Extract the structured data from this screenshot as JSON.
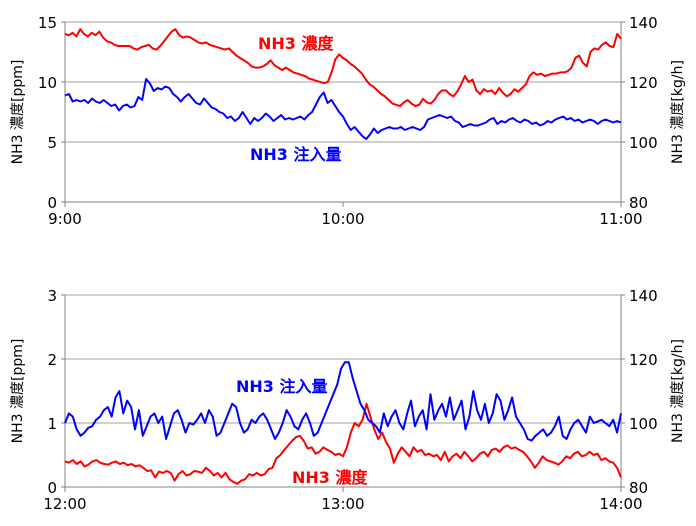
{
  "chart_data": [
    {
      "type": "line",
      "x_ticks": [
        "9:00",
        "10:00",
        "11:00"
      ],
      "y_left": {
        "label": "NH3 濃度[ppm]",
        "range": [
          0,
          15
        ],
        "ticks": [
          "0",
          "5",
          "10",
          "15"
        ]
      },
      "y_right": {
        "label": "NH3 濃度[kg/h]",
        "range": [
          80,
          140
        ],
        "ticks": [
          "80",
          "100",
          "120",
          "140"
        ]
      },
      "grid": true,
      "series": [
        {
          "name": "NH3 濃度",
          "axis": "left",
          "color": "#ff0000",
          "values": [
            14.0,
            13.9,
            14.1,
            13.8,
            14.4,
            14.0,
            13.8,
            14.1,
            13.9,
            14.2,
            13.7,
            13.4,
            13.3,
            13.1,
            13.0,
            13.0,
            13.0,
            13.0,
            12.8,
            12.7,
            12.9,
            13.0,
            13.1,
            12.8,
            12.7,
            13.0,
            13.4,
            13.8,
            14.2,
            14.4,
            13.9,
            13.7,
            13.8,
            13.7,
            13.5,
            13.3,
            13.2,
            13.3,
            13.1,
            13.0,
            12.9,
            12.8,
            12.7,
            12.8,
            12.5,
            12.2,
            12.0,
            11.8,
            11.6,
            11.3,
            11.2,
            11.2,
            11.3,
            11.5,
            11.8,
            11.4,
            11.2,
            11.0,
            11.2,
            11.0,
            10.8,
            10.7,
            10.6,
            10.5,
            10.3,
            10.2,
            10.1,
            10.0,
            9.9,
            10.0,
            10.8,
            11.9,
            12.3,
            12.0,
            11.8,
            11.5,
            11.3,
            11.0,
            10.7,
            10.2,
            9.8,
            9.6,
            9.3,
            9.0,
            8.8,
            8.5,
            8.2,
            8.1,
            8.0,
            8.3,
            8.5,
            8.2,
            8.0,
            8.1,
            8.6,
            8.3,
            8.2,
            8.5,
            9.0,
            9.3,
            9.3,
            9.0,
            8.8,
            9.2,
            9.8,
            10.5,
            10.0,
            10.2,
            9.3,
            9.0,
            9.4,
            9.2,
            9.3,
            9.0,
            9.5,
            9.1,
            8.8,
            9.0,
            9.4,
            9.2,
            9.5,
            9.8,
            10.5,
            10.8,
            10.6,
            10.7,
            10.5,
            10.6,
            10.7,
            10.7,
            10.8,
            10.8,
            10.9,
            11.2,
            12.0,
            12.2,
            11.6,
            11.3,
            12.5,
            12.8,
            12.7,
            13.1,
            13.3,
            13.0,
            12.9,
            14.0,
            13.6
          ]
        },
        {
          "name": "NH3 注入量",
          "axis": "right",
          "color": "#0000ff",
          "values": [
            115.5,
            116.0,
            113.5,
            114.0,
            113.5,
            114.0,
            113.0,
            114.5,
            113.5,
            113.0,
            114.0,
            113.0,
            112.0,
            112.5,
            110.5,
            112.0,
            112.5,
            111.5,
            112.0,
            115.0,
            114.0,
            121.0,
            119.5,
            117.0,
            118.0,
            117.5,
            118.5,
            118.0,
            116.0,
            115.0,
            113.5,
            115.0,
            116.0,
            114.5,
            113.0,
            112.5,
            114.5,
            113.0,
            111.5,
            111.0,
            110.0,
            109.5,
            108.0,
            108.5,
            107.0,
            108.0,
            110.0,
            108.0,
            106.0,
            108.0,
            107.0,
            108.0,
            109.5,
            108.5,
            107.0,
            108.0,
            109.0,
            107.5,
            108.0,
            107.5,
            108.0,
            108.5,
            107.5,
            109.0,
            110.0,
            112.5,
            115.0,
            116.5,
            113.0,
            114.0,
            112.0,
            110.0,
            108.5,
            106.0,
            104.0,
            105.0,
            103.5,
            102.0,
            101.0,
            102.5,
            104.5,
            103.0,
            104.0,
            104.5,
            105.0,
            104.5,
            104.5,
            105.0,
            104.0,
            104.5,
            105.0,
            104.5,
            104.0,
            105.0,
            107.5,
            108.0,
            108.5,
            109.0,
            108.5,
            108.0,
            108.5,
            107.0,
            106.5,
            105.0,
            105.5,
            106.0,
            105.5,
            105.5,
            106.0,
            106.5,
            107.5,
            108.0,
            106.0,
            107.0,
            106.5,
            107.5,
            108.0,
            107.0,
            106.5,
            107.5,
            107.0,
            106.0,
            106.5,
            105.5,
            106.0,
            107.0,
            106.5,
            107.5,
            108.0,
            108.5,
            107.5,
            108.0,
            107.0,
            107.5,
            106.5,
            107.0,
            107.5,
            107.0,
            106.0,
            107.0,
            107.5,
            107.0,
            106.5,
            107.0,
            106.5
          ]
        }
      ]
    },
    {
      "type": "line",
      "x_ticks": [
        "12:00",
        "13:00",
        "14:00"
      ],
      "y_left": {
        "label": "NH3 濃度[ppm]",
        "range": [
          0,
          3
        ],
        "ticks": [
          "0",
          "1",
          "2",
          "3"
        ]
      },
      "y_right": {
        "label": "NH3 濃度[kg/h]",
        "range": [
          80,
          140
        ],
        "ticks": [
          "80",
          "100",
          "120",
          "140"
        ]
      },
      "grid": true,
      "series": [
        {
          "name": "NH3 濃度",
          "axis": "left",
          "color": "#ff0000",
          "values": [
            0.4,
            0.38,
            0.42,
            0.36,
            0.4,
            0.32,
            0.35,
            0.4,
            0.42,
            0.38,
            0.36,
            0.35,
            0.38,
            0.4,
            0.36,
            0.38,
            0.34,
            0.36,
            0.32,
            0.34,
            0.3,
            0.25,
            0.26,
            0.15,
            0.24,
            0.22,
            0.25,
            0.22,
            0.1,
            0.2,
            0.25,
            0.18,
            0.2,
            0.25,
            0.24,
            0.22,
            0.3,
            0.25,
            0.18,
            0.22,
            0.15,
            0.22,
            0.12,
            0.08,
            0.05,
            0.1,
            0.12,
            0.2,
            0.18,
            0.22,
            0.18,
            0.2,
            0.28,
            0.3,
            0.45,
            0.5,
            0.58,
            0.65,
            0.72,
            0.78,
            0.8,
            0.72,
            0.6,
            0.62,
            0.52,
            0.55,
            0.62,
            0.58,
            0.55,
            0.5,
            0.52,
            0.48,
            0.62,
            0.85,
            1.0,
            0.95,
            1.05,
            1.3,
            1.1,
            0.9,
            0.75,
            0.85,
            0.7,
            0.6,
            0.38,
            0.52,
            0.62,
            0.55,
            0.48,
            0.62,
            0.55,
            0.58,
            0.5,
            0.52,
            0.48,
            0.5,
            0.42,
            0.55,
            0.4,
            0.48,
            0.52,
            0.45,
            0.55,
            0.48,
            0.4,
            0.45,
            0.52,
            0.55,
            0.48,
            0.58,
            0.6,
            0.55,
            0.62,
            0.65,
            0.6,
            0.62,
            0.58,
            0.55,
            0.48,
            0.4,
            0.3,
            0.38,
            0.48,
            0.42,
            0.4,
            0.38,
            0.35,
            0.4,
            0.48,
            0.45,
            0.52,
            0.55,
            0.48,
            0.5,
            0.55,
            0.5,
            0.52,
            0.42,
            0.45,
            0.4,
            0.38,
            0.3,
            0.15
          ]
        },
        {
          "name": "NH3 注入量",
          "axis": "right",
          "color": "#0000ff",
          "values": [
            100.0,
            103.0,
            102.0,
            98.0,
            96.0,
            97.0,
            98.5,
            99.0,
            101.0,
            102.0,
            104.0,
            105.0,
            102.0,
            108.0,
            110.0,
            103.0,
            107.0,
            105.0,
            98.0,
            104.0,
            96.0,
            99.0,
            102.0,
            103.0,
            100.0,
            102.0,
            95.0,
            99.0,
            103.0,
            104.0,
            101.0,
            97.0,
            100.0,
            99.5,
            101.0,
            103.0,
            100.0,
            104.0,
            102.0,
            96.0,
            97.0,
            100.0,
            103.0,
            106.0,
            105.0,
            100.0,
            97.0,
            98.0,
            101.0,
            100.0,
            102.0,
            103.0,
            101.0,
            98.0,
            95.0,
            97.0,
            100.0,
            104.0,
            102.0,
            99.0,
            98.0,
            101.0,
            103.0,
            100.0,
            96.0,
            97.0,
            100.0,
            103.0,
            106.0,
            109.0,
            112.0,
            117.0,
            119.0,
            119.0,
            114.0,
            110.0,
            106.0,
            104.0,
            101.0,
            100.0,
            99.0,
            97.0,
            103.0,
            99.0,
            102.0,
            104.0,
            100.0,
            98.0,
            103.0,
            107.0,
            99.0,
            102.0,
            104.0,
            98.0,
            109.0,
            101.0,
            104.0,
            106.0,
            102.0,
            108.0,
            101.0,
            104.0,
            107.0,
            98.0,
            102.0,
            110.0,
            104.0,
            101.0,
            106.0,
            100.0,
            103.0,
            109.0,
            107.0,
            101.0,
            104.0,
            108.0,
            102.0,
            100.0,
            98.0,
            95.0,
            94.5,
            96.0,
            97.0,
            98.0,
            96.0,
            97.0,
            99.0,
            102.0,
            96.0,
            95.0,
            98.0,
            100.0,
            101.0,
            99.0,
            97.0,
            102.0,
            100.0,
            100.5,
            101.0,
            100.0,
            99.0,
            101.0,
            97.0,
            103.0
          ]
        }
      ],
      "annotation_labels_show": true
    }
  ]
}
